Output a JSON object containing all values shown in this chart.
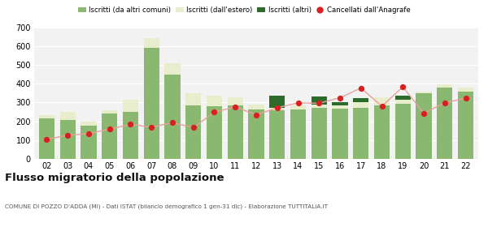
{
  "years": [
    "02",
    "03",
    "04",
    "05",
    "06",
    "07",
    "08",
    "09",
    "10",
    "11",
    "12",
    "13",
    "14",
    "15",
    "16",
    "17",
    "18",
    "19",
    "20",
    "21",
    "22"
  ],
  "iscritti_altri_comuni": [
    215,
    207,
    175,
    242,
    248,
    590,
    450,
    285,
    280,
    285,
    265,
    260,
    265,
    270,
    268,
    272,
    285,
    295,
    350,
    380,
    358
  ],
  "iscritti_estero": [
    18,
    42,
    22,
    18,
    65,
    52,
    58,
    65,
    55,
    42,
    22,
    12,
    18,
    18,
    18,
    28,
    42,
    18,
    8,
    18,
    22
  ],
  "iscritti_altri": [
    0,
    0,
    0,
    0,
    0,
    0,
    0,
    0,
    0,
    0,
    0,
    65,
    0,
    45,
    15,
    22,
    0,
    22,
    0,
    0,
    0
  ],
  "cancellati": [
    105,
    125,
    135,
    158,
    184,
    168,
    193,
    166,
    248,
    277,
    234,
    272,
    298,
    296,
    325,
    377,
    280,
    383,
    243,
    298,
    323
  ],
  "ylim": [
    0,
    700
  ],
  "yticks": [
    0,
    100,
    200,
    300,
    400,
    500,
    600,
    700
  ],
  "color_altri_comuni": "#8ab870",
  "color_estero": "#e8eecc",
  "color_altri": "#2d6b2d",
  "color_cancellati": "#d92020",
  "color_line": "#e8a0a0",
  "bg_color": "#f2f2f2",
  "legend_labels": [
    "Iscritti (da altri comuni)",
    "Iscritti (dall'estero)",
    "Iscritti (altri)",
    "Cancellati dall'Anagrafe"
  ],
  "title": "Flusso migratorio della popolazione",
  "subtitle": "COMUNE DI POZZO D'ADDA (MI) - Dati ISTAT (bilancio demografico 1 gen-31 dic) - Elaborazione TUTTITALIA.IT"
}
